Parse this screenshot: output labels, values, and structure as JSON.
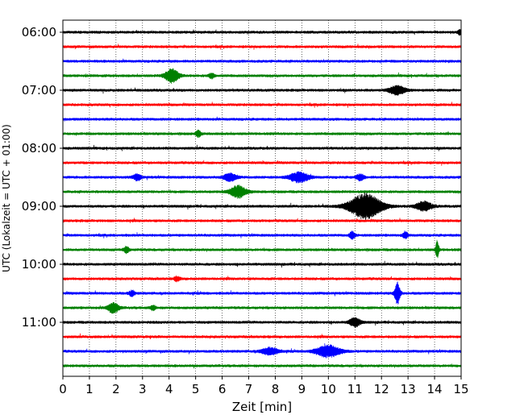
{
  "chart_data": {
    "type": "line",
    "title": "",
    "xlabel": "Zeit  [min]",
    "ylabel": "UTC (Lokalzeit = UTC + 01:00)",
    "xlim": [
      0,
      15
    ],
    "x_ticks": [
      0,
      1,
      2,
      3,
      4,
      5,
      6,
      7,
      8,
      9,
      10,
      11,
      12,
      13,
      14,
      15
    ],
    "x_tick_labels": [
      "0",
      "1",
      "2",
      "3",
      "4",
      "5",
      "6",
      "7",
      "8",
      "9",
      "10",
      "11",
      "12",
      "13",
      "14",
      "15"
    ],
    "y_tick_labels": [
      {
        "label": "06:00",
        "trace": 0
      },
      {
        "label": "07:00",
        "trace": 4
      },
      {
        "label": "08:00",
        "trace": 8
      },
      {
        "label": "09:00",
        "trace": 12
      },
      {
        "label": "10:00",
        "trace": 16
      },
      {
        "label": "11:00",
        "trace": 20
      }
    ],
    "grid": "vertical dotted lines at each minute",
    "color_cycle": [
      "#000000",
      "#ff0000",
      "#0000ff",
      "#008000"
    ],
    "trace_count": 24,
    "trace_minutes": 15,
    "events": [
      {
        "trace": 0,
        "t": 14.95,
        "amp": 0.35,
        "dur": 0.15
      },
      {
        "trace": 3,
        "t": 4.1,
        "amp": 0.9,
        "dur": 0.5
      },
      {
        "trace": 3,
        "t": 5.6,
        "amp": 0.35,
        "dur": 0.2
      },
      {
        "trace": 4,
        "t": 12.6,
        "amp": 0.6,
        "dur": 0.6
      },
      {
        "trace": 7,
        "t": 5.1,
        "amp": 0.4,
        "dur": 0.2
      },
      {
        "trace": 10,
        "t": 2.8,
        "amp": 0.4,
        "dur": 0.3
      },
      {
        "trace": 10,
        "t": 6.3,
        "amp": 0.5,
        "dur": 0.5
      },
      {
        "trace": 10,
        "t": 8.9,
        "amp": 0.7,
        "dur": 0.7
      },
      {
        "trace": 10,
        "t": 11.2,
        "amp": 0.4,
        "dur": 0.3
      },
      {
        "trace": 11,
        "t": 6.6,
        "amp": 0.8,
        "dur": 0.6
      },
      {
        "trace": 12,
        "t": 11.4,
        "amp": 1.7,
        "dur": 1.2
      },
      {
        "trace": 12,
        "t": 13.6,
        "amp": 0.6,
        "dur": 0.6
      },
      {
        "trace": 14,
        "t": 10.9,
        "amp": 0.5,
        "dur": 0.2
      },
      {
        "trace": 14,
        "t": 12.9,
        "amp": 0.4,
        "dur": 0.2
      },
      {
        "trace": 15,
        "t": 2.4,
        "amp": 0.4,
        "dur": 0.2
      },
      {
        "trace": 15,
        "t": 14.1,
        "amp": 1.2,
        "dur": 0.12
      },
      {
        "trace": 17,
        "t": 4.3,
        "amp": 0.3,
        "dur": 0.2
      },
      {
        "trace": 18,
        "t": 2.6,
        "amp": 0.4,
        "dur": 0.2
      },
      {
        "trace": 18,
        "t": 12.6,
        "amp": 1.5,
        "dur": 0.2
      },
      {
        "trace": 19,
        "t": 1.9,
        "amp": 0.7,
        "dur": 0.4
      },
      {
        "trace": 19,
        "t": 3.4,
        "amp": 0.3,
        "dur": 0.2
      },
      {
        "trace": 20,
        "t": 11.0,
        "amp": 0.6,
        "dur": 0.4
      },
      {
        "trace": 22,
        "t": 7.8,
        "amp": 0.5,
        "dur": 0.6
      },
      {
        "trace": 22,
        "t": 10.0,
        "amp": 0.8,
        "dur": 0.9
      }
    ]
  }
}
